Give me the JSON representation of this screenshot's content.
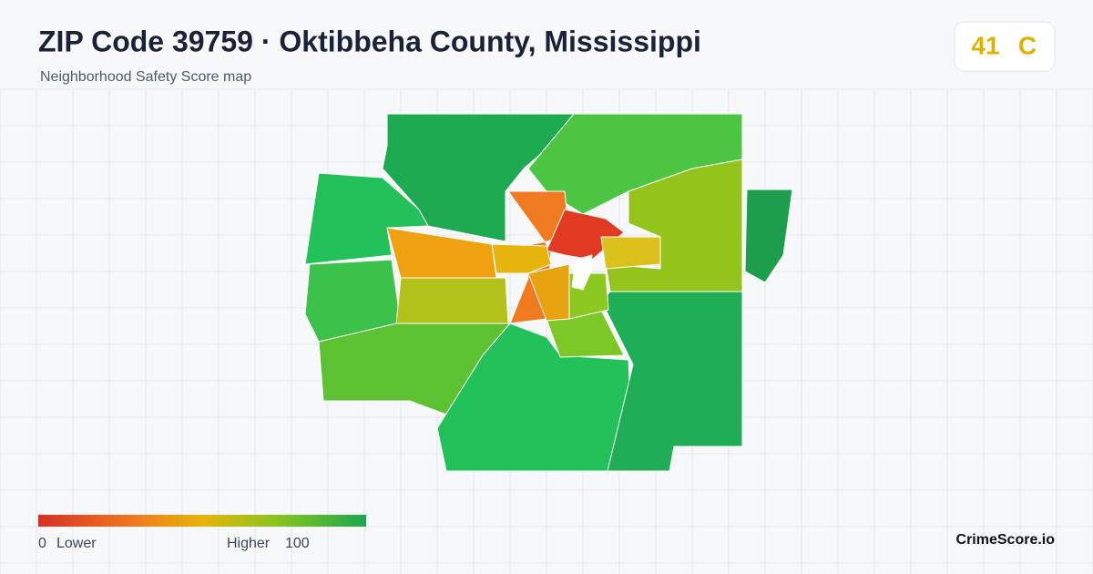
{
  "header": {
    "title": "ZIP Code 39759 · Oktibbeha County, Mississippi",
    "subtitle": "Neighborhood Safety Score map"
  },
  "badge": {
    "score": "41",
    "grade": "C"
  },
  "legend": {
    "min": "0",
    "min_label": "Lower",
    "max_label": "Higher",
    "max": "100"
  },
  "brand": "CrimeScore.io"
}
